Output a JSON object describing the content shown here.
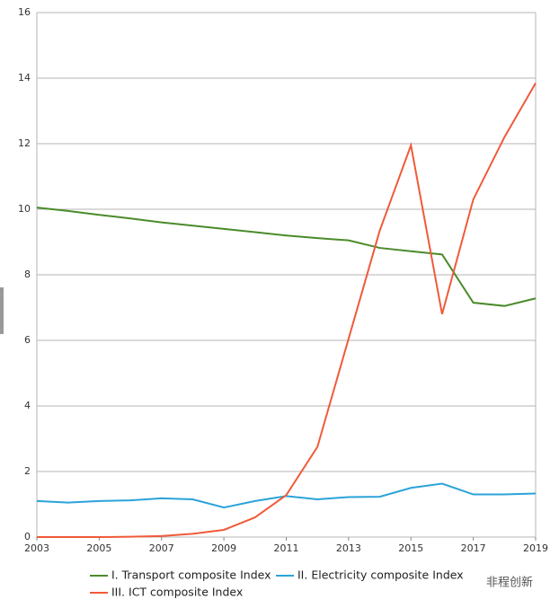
{
  "chart_data": {
    "type": "line",
    "x": [
      2003,
      2004,
      2005,
      2006,
      2007,
      2008,
      2009,
      2010,
      2011,
      2012,
      2013,
      2014,
      2015,
      2016,
      2017,
      2018,
      2019
    ],
    "series": [
      {
        "name": "I. Transport composite Index",
        "color": "#4b8b2b",
        "values": [
          10.05,
          9.95,
          9.83,
          9.72,
          9.6,
          9.5,
          9.4,
          9.3,
          9.2,
          9.12,
          9.05,
          8.82,
          8.72,
          8.62,
          7.15,
          7.05,
          7.28
        ]
      },
      {
        "name": "II. Electricity composite Index",
        "color": "#2ba3d9",
        "values": [
          1.1,
          1.05,
          1.1,
          1.12,
          1.18,
          1.15,
          0.9,
          1.1,
          1.25,
          1.15,
          1.22,
          1.23,
          1.5,
          1.63,
          1.3,
          1.3,
          1.33
        ]
      },
      {
        "name": "III. ICT composite Index",
        "color": "#f05a3a",
        "values": [
          0,
          0,
          0,
          0.01,
          0.03,
          0.1,
          0.22,
          0.6,
          1.28,
          2.75,
          6.05,
          9.35,
          11.95,
          6.8,
          10.3,
          12.2,
          13.85
        ]
      }
    ],
    "xlim": [
      2003,
      2019
    ],
    "xticks": [
      2003,
      2005,
      2007,
      2009,
      2011,
      2013,
      2015,
      2017,
      2019
    ],
    "ylim": [
      0,
      16
    ],
    "yticks": [
      0,
      2,
      4,
      6,
      8,
      10,
      12,
      14,
      16
    ],
    "grid": true,
    "legend": "bottom"
  },
  "watermark": "非程创新"
}
